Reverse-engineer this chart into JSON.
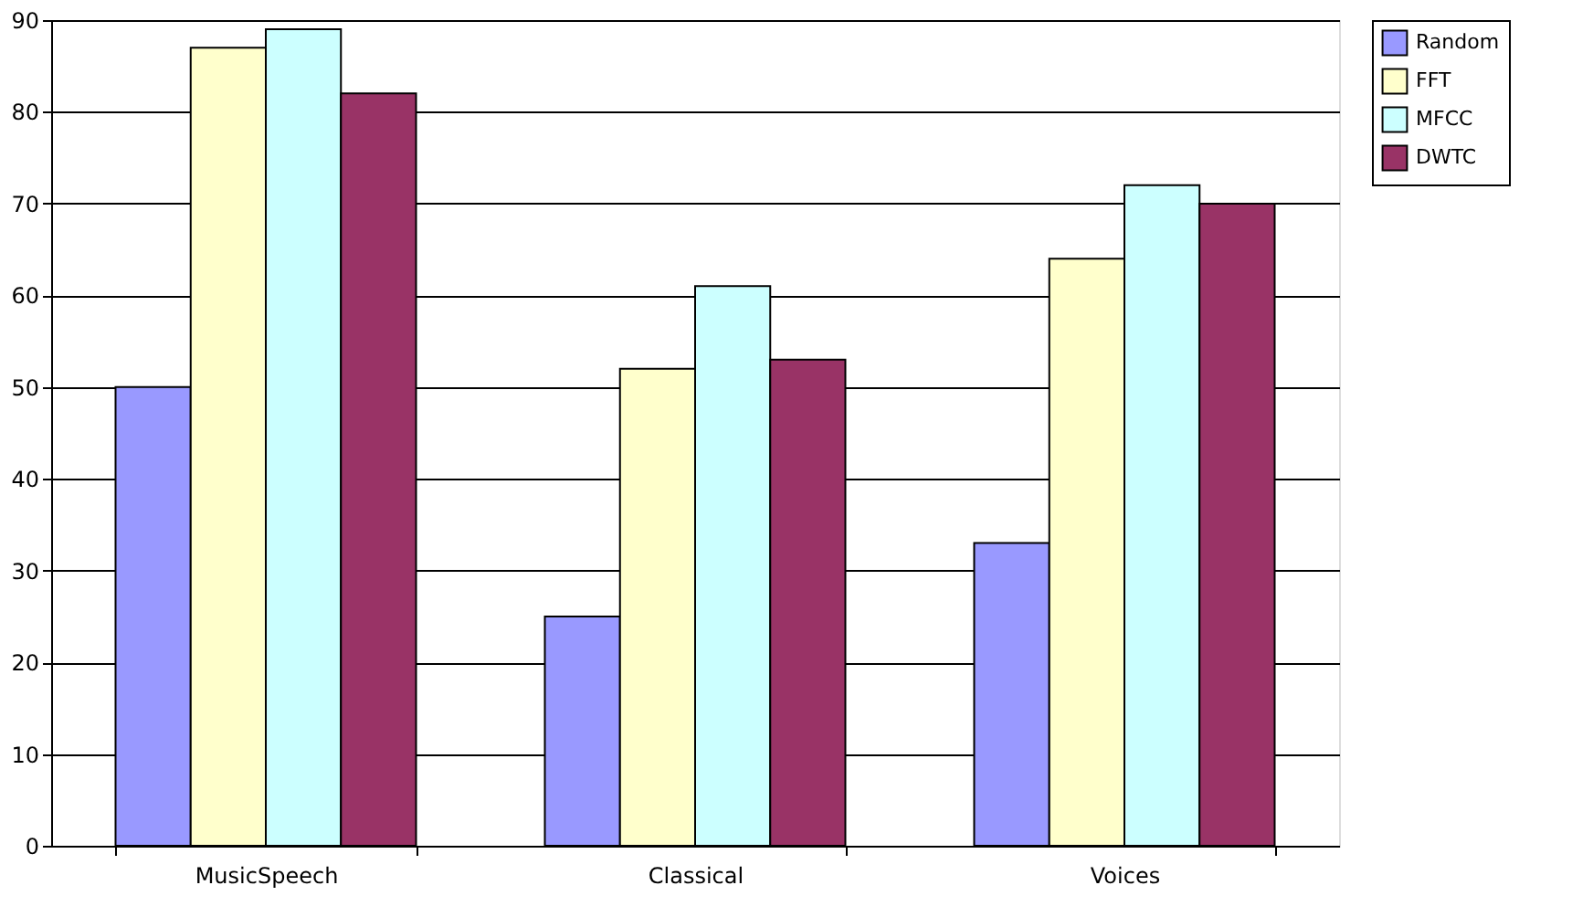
{
  "chart_data": {
    "type": "bar",
    "categories": [
      "MusicSpeech",
      "Classical",
      "Voices"
    ],
    "series": [
      {
        "name": "Random",
        "color": "#9999ff",
        "values": [
          50,
          25,
          33
        ]
      },
      {
        "name": "FFT",
        "color": "#ffffcc",
        "values": [
          87,
          52,
          64
        ]
      },
      {
        "name": "MFCC",
        "color": "#ccffff",
        "values": [
          89,
          61,
          72
        ]
      },
      {
        "name": "DWTC",
        "color": "#993366",
        "values": [
          82,
          53,
          70
        ]
      }
    ],
    "ylim": [
      0,
      90
    ],
    "yticks": [
      0,
      10,
      20,
      30,
      40,
      50,
      60,
      70,
      80,
      90
    ],
    "grid": "y",
    "legend": "right"
  }
}
